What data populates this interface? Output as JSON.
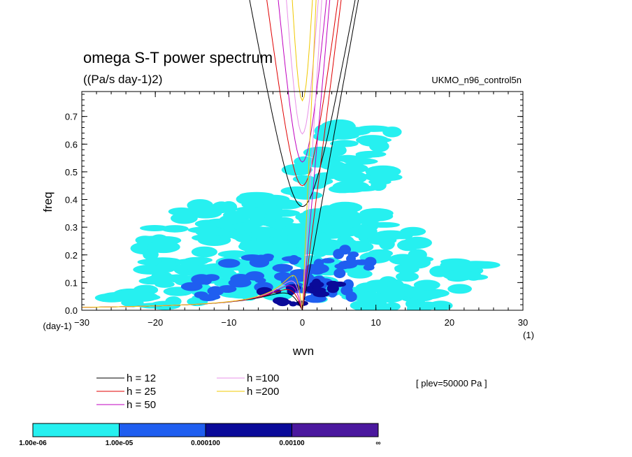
{
  "chart_data": {
    "type": "heatmap",
    "title": "omega S-T power spectrum",
    "subtitle": "((Pa/s day-1)2)",
    "dataset": "UKMO_n96_control5n",
    "xlabel": "wvn",
    "ylabel": "freq",
    "xunit": "(1)",
    "yunit": "(day-1)",
    "annotation": "[ plev=50000 Pa ]",
    "xlim": [
      -30,
      30
    ],
    "ylim": [
      0,
      0.79
    ],
    "xticks": [
      -30,
      -20,
      -10,
      0,
      10,
      20,
      30
    ],
    "xticklabels": [
      "−30",
      "−20",
      "−10",
      "0",
      "10",
      "20",
      "30"
    ],
    "yticks": [
      0.0,
      0.1,
      0.2,
      0.3,
      0.4,
      0.5,
      0.6,
      0.7
    ],
    "yticklabels": [
      "0.0",
      "0.1",
      "0.2",
      "0.3",
      "0.4",
      "0.5",
      "0.6",
      "0.7"
    ],
    "colorbar": {
      "levels": [
        "1.00e-06",
        "1.00e-05",
        "0.000100",
        "0.00100",
        "∞"
      ],
      "colors": [
        "#26f0f0",
        "#1f5ef0",
        "#0a0a99",
        "#4b189e"
      ]
    },
    "curves": [
      {
        "label": "h = 12",
        "color": "#000000",
        "depth": 12
      },
      {
        "label": "h = 25",
        "color": "#e00000",
        "depth": 25
      },
      {
        "label": "h = 50",
        "color": "#c000c0",
        "depth": 50
      },
      {
        "label": "h =100",
        "color": "#e890e8",
        "depth": 100
      },
      {
        "label": "h =200",
        "color": "#f0c800",
        "depth": 200
      }
    ],
    "regions": [
      {
        "level": 1,
        "x": -8,
        "y": 0.22,
        "rx": 14,
        "ry": 0.18
      },
      {
        "level": 1,
        "x": -2,
        "y": 0.32,
        "rx": 9,
        "ry": 0.12
      },
      {
        "level": 1,
        "x": 5,
        "y": 0.2,
        "rx": 12,
        "ry": 0.17
      },
      {
        "level": 1,
        "x": -20,
        "y": 0.05,
        "rx": 8,
        "ry": 0.04
      },
      {
        "level": 1,
        "x": 14,
        "y": 0.05,
        "rx": 9,
        "ry": 0.05
      },
      {
        "level": 1,
        "x": 5,
        "y": 0.5,
        "rx": 7,
        "ry": 0.08
      },
      {
        "level": 1,
        "x": 8,
        "y": 0.62,
        "rx": 6,
        "ry": 0.06
      },
      {
        "level": 1,
        "x": -14,
        "y": 0.12,
        "rx": 7,
        "ry": 0.06
      },
      {
        "level": 1,
        "x": 22,
        "y": 0.15,
        "rx": 5,
        "ry": 0.05
      },
      {
        "level": 2,
        "x": -4,
        "y": 0.13,
        "rx": 8,
        "ry": 0.07
      },
      {
        "level": 2,
        "x": 3,
        "y": 0.1,
        "rx": 5,
        "ry": 0.08
      },
      {
        "level": 2,
        "x": -12,
        "y": 0.08,
        "rx": 4,
        "ry": 0.04
      },
      {
        "level": 2,
        "x": 7,
        "y": 0.18,
        "rx": 3,
        "ry": 0.05
      },
      {
        "level": 3,
        "x": -2,
        "y": 0.06,
        "rx": 4,
        "ry": 0.04
      },
      {
        "level": 3,
        "x": 4,
        "y": 0.08,
        "rx": 3,
        "ry": 0.03
      }
    ]
  }
}
